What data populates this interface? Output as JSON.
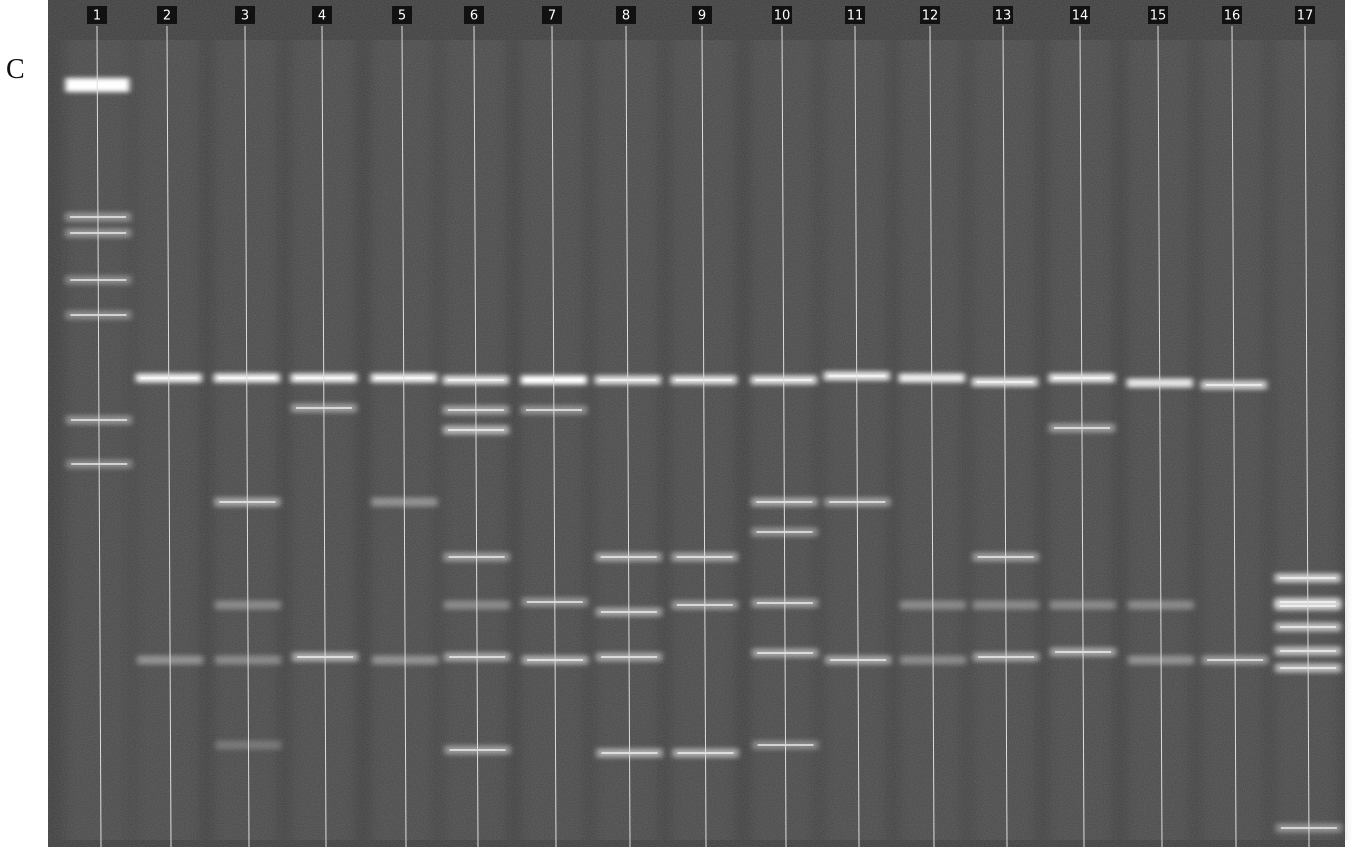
{
  "panel_label": "C",
  "lanes": [
    "1",
    "2",
    "3",
    "4",
    "5",
    "6",
    "7",
    "8",
    "9",
    "10",
    "11",
    "12",
    "13",
    "14",
    "15",
    "16",
    "17"
  ]
}
